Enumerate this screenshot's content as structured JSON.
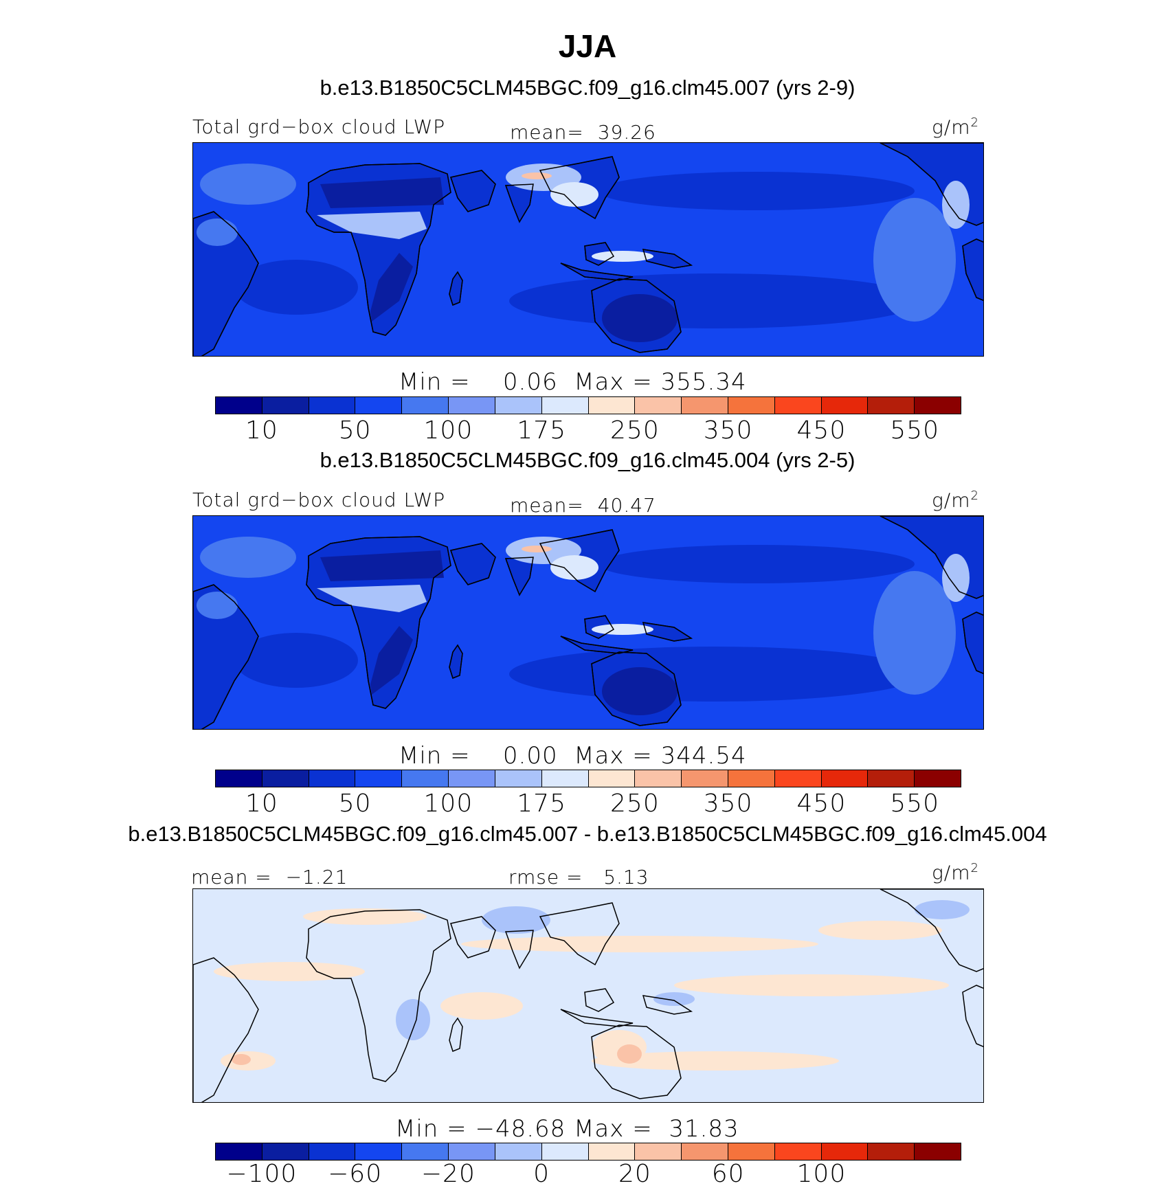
{
  "season": "JJA",
  "palette_colors": [
    "#00008b",
    "#0a1ea0",
    "#0a32d2",
    "#1446f0",
    "#4678f0",
    "#7896f5",
    "#aac3fa",
    "#dce9fd",
    "#fde6d2",
    "#fac3a8",
    "#f5966e",
    "#f5733c",
    "#fa461e",
    "#e6280a",
    "#b41e0a",
    "#8b0000"
  ],
  "map_colors": {
    "ocean_deep": "#1446f0",
    "ocean_mid": "#4678f0",
    "land_dry": "#0a32d2",
    "desert": "#0a1ea0",
    "wet": "#aac3fa",
    "very_wet": "#dce9fd",
    "peak": "#fac3a8",
    "diff_base": "#dce9fd",
    "diff_pos": "#fde6d2",
    "diff_neg": "#aac3fa",
    "coast": "#000000"
  },
  "panels": [
    {
      "case_title": "b.e13.B1850C5CLM45BGC.f09_g16.clm45.007 (yrs 2-9)",
      "left_label": "Total grd−box cloud LWP",
      "mean_label": "mean=",
      "mean_value": "39.26",
      "units": "g/m",
      "units_sup": "2",
      "min_label": "Min =",
      "min_value": "0.06",
      "max_label": "Max =",
      "max_value": "355.34",
      "ticks": [
        "10",
        "50",
        "100",
        "175",
        "250",
        "350",
        "450",
        "550"
      ]
    },
    {
      "case_title": "b.e13.B1850C5CLM45BGC.f09_g16.clm45.004 (yrs 2-5)",
      "left_label": "Total grd−box cloud LWP",
      "mean_label": "mean=",
      "mean_value": "40.47",
      "units": "g/m",
      "units_sup": "2",
      "min_label": "Min =",
      "min_value": "0.00",
      "max_label": "Max =",
      "max_value": "344.54",
      "ticks": [
        "10",
        "50",
        "100",
        "175",
        "250",
        "350",
        "450",
        "550"
      ]
    },
    {
      "case_title": "b.e13.B1850C5CLM45BGC.f09_g16.clm45.007 - b.e13.B1850C5CLM45BGC.f09_g16.clm45.004",
      "mean_label": "mean =",
      "mean_value": "−1.21",
      "rmse_label": "rmse =",
      "rmse_value": "5.13",
      "units": "g/m",
      "units_sup": "2",
      "min_label": "Min =",
      "min_value": "−48.68",
      "max_label": "Max =",
      "max_value": "31.83",
      "ticks": [
        "−100",
        "−60",
        "−20",
        "0",
        "20",
        "60",
        "100"
      ]
    }
  ]
}
